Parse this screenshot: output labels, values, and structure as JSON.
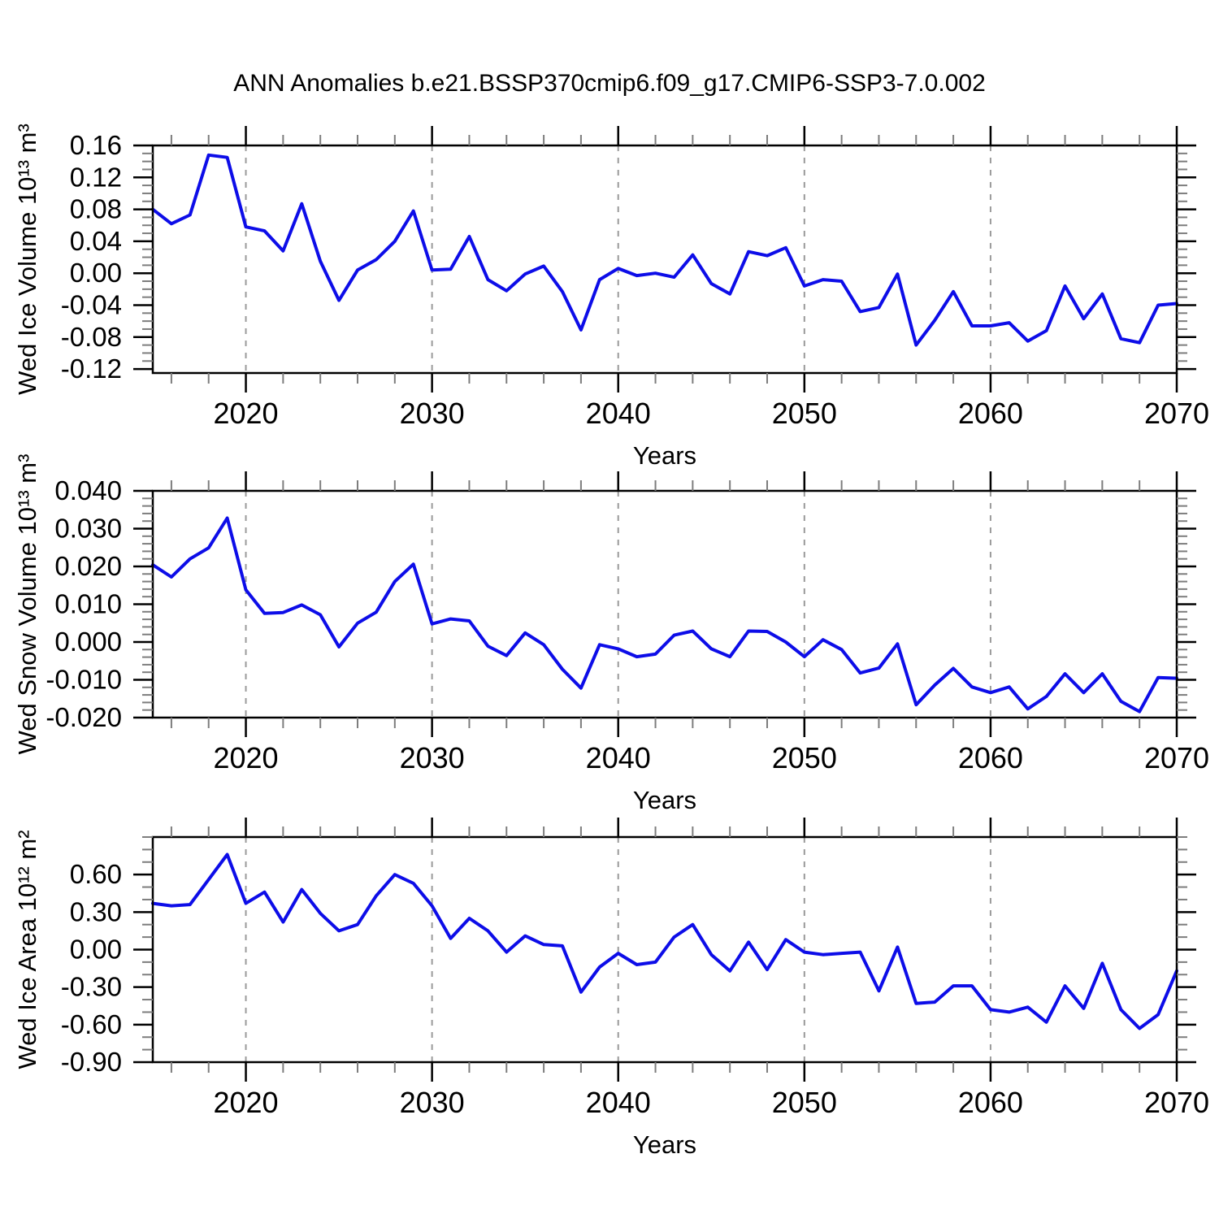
{
  "title": "ANN Anomalies b.e21.BSSP370cmip6.f09_g17.CMIP6-SSP3-7.0.002",
  "colors": {
    "line": "#0d0de8",
    "grid": "#9a9a9a",
    "axis": "#000000",
    "minor_tick": "#7d7d7d",
    "text": "#000000",
    "background": "#ffffff"
  },
  "chart_data": [
    {
      "type": "line",
      "name": "wed-ice-volume-anomaly",
      "ylabel": "Wed Ice Volume 10¹³ m³",
      "xlabel": "Years",
      "xlim": [
        2015,
        2070
      ],
      "ylim": [
        -0.125,
        0.16
      ],
      "xticks": {
        "values": [
          2020,
          2030,
          2040,
          2050,
          2060,
          2070
        ],
        "labels": [
          "2020",
          "2030",
          "2040",
          "2050",
          "2060",
          "2070"
        ],
        "minor_step": 2
      },
      "yticks": {
        "values": [
          0.16,
          0.12,
          0.08,
          0.04,
          0.0,
          -0.04,
          -0.08,
          -0.12
        ],
        "labels": [
          "0.16",
          "0.12",
          "0.08",
          "0.04",
          "0.00",
          "-0.04",
          "-0.08",
          "-0.12"
        ],
        "minor_step": 0.01
      },
      "grid_x": [
        2020,
        2030,
        2040,
        2050,
        2060
      ],
      "x": [
        2015,
        2016,
        2017,
        2018,
        2019,
        2020,
        2021,
        2022,
        2023,
        2024,
        2025,
        2026,
        2027,
        2028,
        2029,
        2030,
        2031,
        2032,
        2033,
        2034,
        2035,
        2036,
        2037,
        2038,
        2039,
        2040,
        2041,
        2042,
        2043,
        2044,
        2045,
        2046,
        2047,
        2048,
        2049,
        2050,
        2051,
        2052,
        2053,
        2054,
        2055,
        2056,
        2057,
        2058,
        2059,
        2060,
        2061,
        2062,
        2063,
        2064,
        2065,
        2066,
        2067,
        2068,
        2069,
        2070
      ],
      "y": [
        0.08,
        0.062,
        0.073,
        0.148,
        0.145,
        0.058,
        0.053,
        0.028,
        0.087,
        0.015,
        -0.034,
        0.004,
        0.017,
        0.04,
        0.078,
        0.004,
        0.005,
        0.046,
        -0.008,
        -0.022,
        -0.001,
        0.009,
        -0.023,
        -0.071,
        -0.008,
        0.006,
        -0.003,
        0.0,
        -0.005,
        0.023,
        -0.013,
        -0.026,
        0.027,
        0.022,
        0.032,
        -0.016,
        -0.008,
        -0.01,
        -0.048,
        -0.043,
        -0.001,
        -0.09,
        -0.059,
        -0.023,
        -0.066,
        -0.066,
        -0.062,
        -0.085,
        -0.072,
        -0.016,
        -0.057,
        -0.026,
        -0.082,
        -0.087,
        -0.04,
        -0.038
      ]
    },
    {
      "type": "line",
      "name": "wed-snow-volume-anomaly",
      "ylabel": "Wed Snow Volume 10¹³ m³",
      "xlabel": "Years",
      "xlim": [
        2015,
        2070
      ],
      "ylim": [
        -0.02,
        0.04
      ],
      "xticks": {
        "values": [
          2020,
          2030,
          2040,
          2050,
          2060,
          2070
        ],
        "labels": [
          "2020",
          "2030",
          "2040",
          "2050",
          "2060",
          "2070"
        ],
        "minor_step": 2
      },
      "yticks": {
        "values": [
          0.04,
          0.03,
          0.02,
          0.01,
          0.0,
          -0.01,
          -0.02
        ],
        "labels": [
          "0.040",
          "0.030",
          "0.020",
          "0.010",
          "0.000",
          "-0.010",
          "-0.020"
        ],
        "minor_step": 0.002
      },
      "grid_x": [
        2020,
        2030,
        2040,
        2050,
        2060
      ],
      "x": [
        2015,
        2016,
        2017,
        2018,
        2019,
        2020,
        2021,
        2022,
        2023,
        2024,
        2025,
        2026,
        2027,
        2028,
        2029,
        2030,
        2031,
        2032,
        2033,
        2034,
        2035,
        2036,
        2037,
        2038,
        2039,
        2040,
        2041,
        2042,
        2043,
        2044,
        2045,
        2046,
        2047,
        2048,
        2049,
        2050,
        2051,
        2052,
        2053,
        2054,
        2055,
        2056,
        2057,
        2058,
        2059,
        2060,
        2061,
        2062,
        2063,
        2064,
        2065,
        2066,
        2067,
        2068,
        2069,
        2070
      ],
      "y": [
        0.0204,
        0.0172,
        0.022,
        0.0249,
        0.0328,
        0.0138,
        0.0076,
        0.0078,
        0.0098,
        0.0072,
        -0.0013,
        0.005,
        0.0079,
        0.016,
        0.0206,
        0.0048,
        0.0061,
        0.0056,
        -0.0011,
        -0.0036,
        0.0024,
        -0.0007,
        -0.0072,
        -0.0122,
        -0.0007,
        -0.0018,
        -0.0039,
        -0.0032,
        0.0018,
        0.0029,
        -0.0018,
        -0.0039,
        0.0029,
        0.0028,
        0.0,
        -0.0039,
        0.0006,
        -0.002,
        -0.0082,
        -0.0069,
        -0.0005,
        -0.0166,
        -0.0114,
        -0.007,
        -0.0119,
        -0.0134,
        -0.0119,
        -0.0177,
        -0.0144,
        -0.0084,
        -0.0134,
        -0.0084,
        -0.0157,
        -0.0184,
        -0.0094,
        -0.0096
      ]
    },
    {
      "type": "line",
      "name": "wed-ice-area-anomaly",
      "ylabel": "Wed Ice Area 10¹² m²",
      "xlabel": "Years",
      "xlim": [
        2015,
        2070
      ],
      "ylim": [
        -0.9,
        0.9
      ],
      "xticks": {
        "values": [
          2020,
          2030,
          2040,
          2050,
          2060,
          2070
        ],
        "labels": [
          "2020",
          "2030",
          "2040",
          "2050",
          "2060",
          "2070"
        ],
        "minor_step": 2
      },
      "yticks": {
        "values": [
          0.6,
          0.3,
          0.0,
          -0.3,
          -0.6,
          -0.9
        ],
        "labels": [
          "0.60",
          "0.30",
          "0.00",
          "-0.30",
          "-0.60",
          "-0.90"
        ],
        "minor_step": 0.1
      },
      "grid_x": [
        2020,
        2030,
        2040,
        2050,
        2060
      ],
      "x": [
        2015,
        2016,
        2017,
        2018,
        2019,
        2020,
        2021,
        2022,
        2023,
        2024,
        2025,
        2026,
        2027,
        2028,
        2029,
        2030,
        2031,
        2032,
        2033,
        2034,
        2035,
        2036,
        2037,
        2038,
        2039,
        2040,
        2041,
        2042,
        2043,
        2044,
        2045,
        2046,
        2047,
        2048,
        2049,
        2050,
        2051,
        2052,
        2053,
        2054,
        2055,
        2056,
        2057,
        2058,
        2059,
        2060,
        2061,
        2062,
        2063,
        2064,
        2065,
        2066,
        2067,
        2068,
        2069,
        2070
      ],
      "y": [
        0.37,
        0.35,
        0.36,
        0.56,
        0.76,
        0.37,
        0.46,
        0.22,
        0.48,
        0.29,
        0.15,
        0.2,
        0.43,
        0.6,
        0.53,
        0.35,
        0.09,
        0.25,
        0.15,
        -0.02,
        0.11,
        0.04,
        0.03,
        -0.34,
        -0.14,
        -0.03,
        -0.12,
        -0.1,
        0.1,
        0.2,
        -0.04,
        -0.17,
        0.06,
        -0.16,
        0.08,
        -0.02,
        -0.04,
        -0.03,
        -0.02,
        -0.33,
        0.02,
        -0.43,
        -0.42,
        -0.29,
        -0.29,
        -0.48,
        -0.5,
        -0.46,
        -0.58,
        -0.29,
        -0.47,
        -0.11,
        -0.48,
        -0.63,
        -0.52,
        -0.17
      ]
    }
  ]
}
